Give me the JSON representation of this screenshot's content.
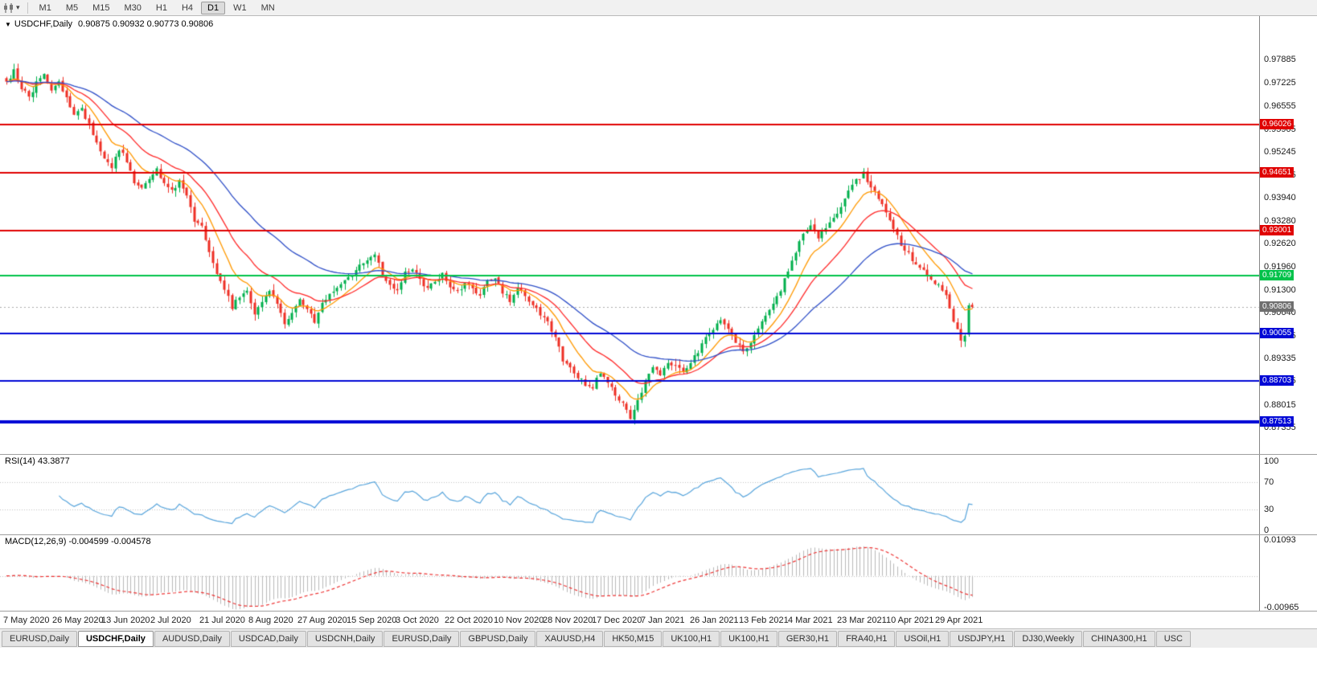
{
  "toolbar": {
    "timeframes": [
      "M1",
      "M5",
      "M15",
      "M30",
      "H1",
      "H4",
      "D1",
      "W1",
      "MN"
    ],
    "active_timeframe": "D1"
  },
  "chart_data": {
    "type": "candlestick",
    "symbol_title": "USDCHF,Daily",
    "ohlc_line": "0.90875 0.90932 0.90773 0.90806",
    "ohlc": {
      "open": 0.90875,
      "high": 0.90932,
      "low": 0.90773,
      "close": 0.90806
    },
    "bars": 258,
    "up_color": "#00b04c",
    "down_color": "#ee2e24",
    "price_anchors": [
      [
        0,
        0.972
      ],
      [
        2,
        0.9756
      ],
      [
        4,
        0.9708
      ],
      [
        6,
        0.9682
      ],
      [
        8,
        0.9722
      ],
      [
        10,
        0.9748
      ],
      [
        12,
        0.97
      ],
      [
        14,
        0.9722
      ],
      [
        16,
        0.9688
      ],
      [
        18,
        0.963
      ],
      [
        20,
        0.9646
      ],
      [
        22,
        0.96
      ],
      [
        24,
        0.9558
      ],
      [
        26,
        0.9502
      ],
      [
        28,
        0.9482
      ],
      [
        30,
        0.9532
      ],
      [
        32,
        0.9502
      ],
      [
        34,
        0.9442
      ],
      [
        36,
        0.9422
      ],
      [
        38,
        0.9452
      ],
      [
        40,
        0.9472
      ],
      [
        42,
        0.9432
      ],
      [
        44,
        0.9412
      ],
      [
        46,
        0.9442
      ],
      [
        48,
        0.9402
      ],
      [
        50,
        0.9332
      ],
      [
        52,
        0.9312
      ],
      [
        54,
        0.9232
      ],
      [
        56,
        0.9182
      ],
      [
        58,
        0.913
      ],
      [
        60,
        0.9082
      ],
      [
        62,
        0.9112
      ],
      [
        64,
        0.9132
      ],
      [
        66,
        0.9062
      ],
      [
        68,
        0.9092
      ],
      [
        70,
        0.9128
      ],
      [
        72,
        0.9092
      ],
      [
        74,
        0.9032
      ],
      [
        76,
        0.9062
      ],
      [
        78,
        0.9102
      ],
      [
        80,
        0.9072
      ],
      [
        82,
        0.9042
      ],
      [
        84,
        0.9092
      ],
      [
        86,
        0.9122
      ],
      [
        88,
        0.9142
      ],
      [
        90,
        0.9158
      ],
      [
        92,
        0.9178
      ],
      [
        94,
        0.9198
      ],
      [
        96,
        0.9208
      ],
      [
        98,
        0.9235
      ],
      [
        100,
        0.9172
      ],
      [
        102,
        0.9148
      ],
      [
        104,
        0.9132
      ],
      [
        106,
        0.9182
      ],
      [
        108,
        0.9192
      ],
      [
        110,
        0.9162
      ],
      [
        112,
        0.9132
      ],
      [
        114,
        0.9152
      ],
      [
        116,
        0.9172
      ],
      [
        118,
        0.9142
      ],
      [
        120,
        0.9122
      ],
      [
        122,
        0.9152
      ],
      [
        124,
        0.9132
      ],
      [
        126,
        0.9112
      ],
      [
        128,
        0.9152
      ],
      [
        130,
        0.9162
      ],
      [
        132,
        0.9122
      ],
      [
        134,
        0.9102
      ],
      [
        136,
        0.9132
      ],
      [
        138,
        0.9112
      ],
      [
        140,
        0.9092
      ],
      [
        142,
        0.9062
      ],
      [
        144,
        0.9042
      ],
      [
        146,
        0.8992
      ],
      [
        148,
        0.8932
      ],
      [
        150,
        0.8902
      ],
      [
        152,
        0.8882
      ],
      [
        154,
        0.8862
      ],
      [
        156,
        0.8852
      ],
      [
        158,
        0.8892
      ],
      [
        160,
        0.8862
      ],
      [
        162,
        0.8832
      ],
      [
        164,
        0.8802
      ],
      [
        166,
        0.8762
      ],
      [
        168,
        0.8812
      ],
      [
        170,
        0.8872
      ],
      [
        172,
        0.8902
      ],
      [
        174,
        0.8892
      ],
      [
        176,
        0.8922
      ],
      [
        178,
        0.8912
      ],
      [
        180,
        0.8892
      ],
      [
        182,
        0.8922
      ],
      [
        184,
        0.8952
      ],
      [
        186,
        0.8992
      ],
      [
        188,
        0.9022
      ],
      [
        190,
        0.9042
      ],
      [
        192,
        0.9012
      ],
      [
        194,
        0.8982
      ],
      [
        196,
        0.8952
      ],
      [
        198,
        0.8982
      ],
      [
        200,
        0.9022
      ],
      [
        202,
        0.9062
      ],
      [
        204,
        0.9092
      ],
      [
        206,
        0.9132
      ],
      [
        208,
        0.9182
      ],
      [
        210,
        0.9242
      ],
      [
        212,
        0.9292
      ],
      [
        214,
        0.9312
      ],
      [
        216,
        0.9282
      ],
      [
        218,
        0.9302
      ],
      [
        220,
        0.9332
      ],
      [
        222,
        0.9372
      ],
      [
        224,
        0.9412
      ],
      [
        226,
        0.9442
      ],
      [
        228,
        0.9462
      ],
      [
        230,
        0.9422
      ],
      [
        232,
        0.9392
      ],
      [
        234,
        0.9352
      ],
      [
        236,
        0.9302
      ],
      [
        238,
        0.9262
      ],
      [
        240,
        0.9232
      ],
      [
        242,
        0.9202
      ],
      [
        244,
        0.9182
      ],
      [
        246,
        0.9162
      ],
      [
        248,
        0.9142
      ],
      [
        250,
        0.9112
      ],
      [
        252,
        0.9042
      ],
      [
        254,
        0.8988
      ],
      [
        255,
        0.8998
      ],
      [
        256,
        0.9085
      ],
      [
        257,
        0.90806
      ]
    ],
    "bar_overrides": {
      "254": {
        "l": 0.8966
      },
      "256": {
        "o": 0.9002,
        "h": 0.9092,
        "l": 0.8996,
        "c": 0.9086
      },
      "257": {
        "o": 0.90875,
        "h": 0.90932,
        "l": 0.90773,
        "c": 0.90806
      }
    },
    "price_axis": {
      "labels": [
        "0.97885",
        "0.97225",
        "0.96555",
        "0.95905",
        "0.95245",
        "0.94585",
        "0.93940",
        "0.93280",
        "0.92620",
        "0.91960",
        "0.91300",
        "0.90640",
        "0.89985",
        "0.89335",
        "0.88685",
        "0.88015",
        "0.87355"
      ]
    },
    "levels": [
      {
        "value": 0.96026,
        "label": "0.96026",
        "color": "#e00000",
        "width": 2
      },
      {
        "value": 0.94651,
        "label": "0.94651",
        "color": "#e00000",
        "width": 2
      },
      {
        "value": 0.93001,
        "label": "0.93001",
        "color": "#e00000",
        "width": 2
      },
      {
        "value": 0.91709,
        "label": "0.91709",
        "color": "#00c24a",
        "width": 2
      },
      {
        "value": 0.90055,
        "label": "0.90055",
        "color": "#0008d6",
        "width": 2
      },
      {
        "value": 0.88703,
        "label": "0.88703",
        "color": "#0008d6",
        "width": 2
      },
      {
        "value": 0.87513,
        "label": "0.87513",
        "color": "#0008d6",
        "width": 4
      }
    ],
    "current_price": {
      "value": 0.90806,
      "label": "0.90806",
      "bg": "#6f6f6f"
    },
    "moving_averages": [
      {
        "period": 10,
        "color": "#ff9900"
      },
      {
        "period": 21,
        "color": "#ff2a2a"
      },
      {
        "period": 45,
        "color": "#2f4fc8"
      }
    ],
    "rsi": {
      "label": "RSI(14) 43.3877",
      "period": 14,
      "value": 43.3877,
      "color": "#58a5dc",
      "guide_levels": [
        70,
        30
      ],
      "axis_labels": [
        "100",
        "70",
        "30",
        "0"
      ]
    },
    "macd": {
      "label": "MACD(12,26,9) -0.004599 -0.004578",
      "fast": 12,
      "slow": 26,
      "signal_period": 9,
      "main_value": -0.004599,
      "signal_value": -0.004578,
      "hist_color": "#b9b9b9",
      "signal_color": "#ee3333",
      "axis_labels": [
        "0.01093",
        "-0.00965"
      ]
    },
    "dates": [
      "7 May 2020",
      "26 May 2020",
      "13 Jun 2020",
      "2 Jul 2020",
      "21 Jul 2020",
      "8 Aug 2020",
      "27 Aug 2020",
      "15 Sep 2020",
      "3 Oct 2020",
      "22 Oct 2020",
      "10 Nov 2020",
      "28 Nov 2020",
      "17 Dec 2020",
      "7 Jan 2021",
      "26 Jan 2021",
      "13 Feb 2021",
      "4 Mar 2021",
      "23 Mar 2021",
      "10 Apr 2021",
      "29 Apr 2021"
    ]
  },
  "tabs": {
    "items": [
      {
        "label": "EURUSD,Daily",
        "active": false
      },
      {
        "label": "USDCHF,Daily",
        "active": true
      },
      {
        "label": "AUDUSD,Daily",
        "active": false
      },
      {
        "label": "USDCAD,Daily",
        "active": false
      },
      {
        "label": "USDCNH,Daily",
        "active": false
      },
      {
        "label": "EURUSD,Daily",
        "active": false
      },
      {
        "label": "GBPUSD,Daily",
        "active": false
      },
      {
        "label": "XAUUSD,H4",
        "active": false
      },
      {
        "label": "HK50,M15",
        "active": false
      },
      {
        "label": "UK100,H1",
        "active": false
      },
      {
        "label": "UK100,H1",
        "active": false
      },
      {
        "label": "GER30,H1",
        "active": false
      },
      {
        "label": "FRA40,H1",
        "active": false
      },
      {
        "label": "USOil,H1",
        "active": false
      },
      {
        "label": "USDJPY,H1",
        "active": false
      },
      {
        "label": "DJ30,Weekly",
        "active": false
      },
      {
        "label": "CHINA300,H1",
        "active": false
      },
      {
        "label": "USC",
        "active": false
      }
    ]
  }
}
